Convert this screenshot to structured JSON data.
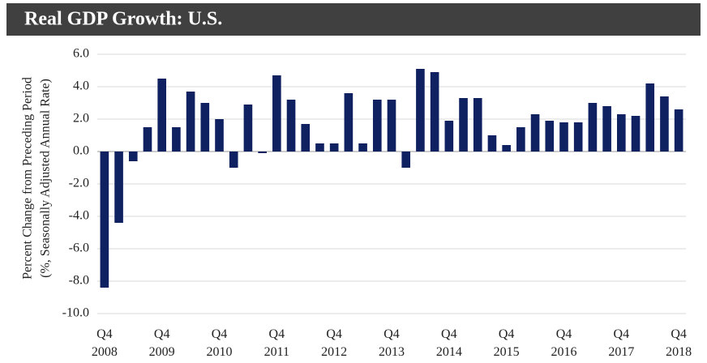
{
  "chart_data": {
    "type": "bar",
    "title": "Real GDP Growth: U.S.",
    "y_label": [
      "Percent Change from Preceding Period",
      "(%, Seasonally Adjusted Annual Rate)"
    ],
    "categories": [
      "Q4 2008",
      null,
      null,
      null,
      "Q4 2009",
      null,
      null,
      null,
      "Q4 2010",
      null,
      null,
      null,
      "Q4 2011",
      null,
      null,
      null,
      "Q4 2012",
      null,
      null,
      null,
      "Q4 2013",
      null,
      null,
      null,
      "Q4 2014",
      null,
      null,
      null,
      "Q4 2015",
      null,
      null,
      null,
      "Q4 2016",
      null,
      null,
      null,
      "Q4 2017",
      null,
      null,
      null,
      "Q4 2018"
    ],
    "values": [
      -8.4,
      -4.4,
      -0.6,
      1.5,
      4.5,
      1.5,
      3.7,
      3.0,
      2.0,
      -1.0,
      2.9,
      -0.1,
      4.7,
      3.2,
      1.7,
      0.5,
      0.5,
      3.6,
      0.5,
      3.2,
      3.2,
      -1.0,
      5.1,
      4.9,
      1.9,
      3.3,
      3.3,
      1.0,
      0.4,
      1.5,
      2.3,
      1.9,
      1.8,
      1.8,
      3.0,
      2.8,
      2.3,
      2.2,
      4.2,
      3.4,
      2.6
    ],
    "color": "#0f2160",
    "ylim": [
      -10,
      6
    ],
    "yticks": [
      {
        "value": -10,
        "label": "-10.0"
      },
      {
        "value": -8,
        "label": "-8.0"
      },
      {
        "value": -6,
        "label": "-6.0"
      },
      {
        "value": -4,
        "label": "-4.0"
      },
      {
        "value": -2,
        "label": "-2.0"
      },
      {
        "value": 0,
        "label": "0.0"
      },
      {
        "value": 2,
        "label": "2.0"
      },
      {
        "value": 4,
        "label": "4.0"
      },
      {
        "value": 6,
        "label": "6.0"
      }
    ],
    "grid": true
  }
}
